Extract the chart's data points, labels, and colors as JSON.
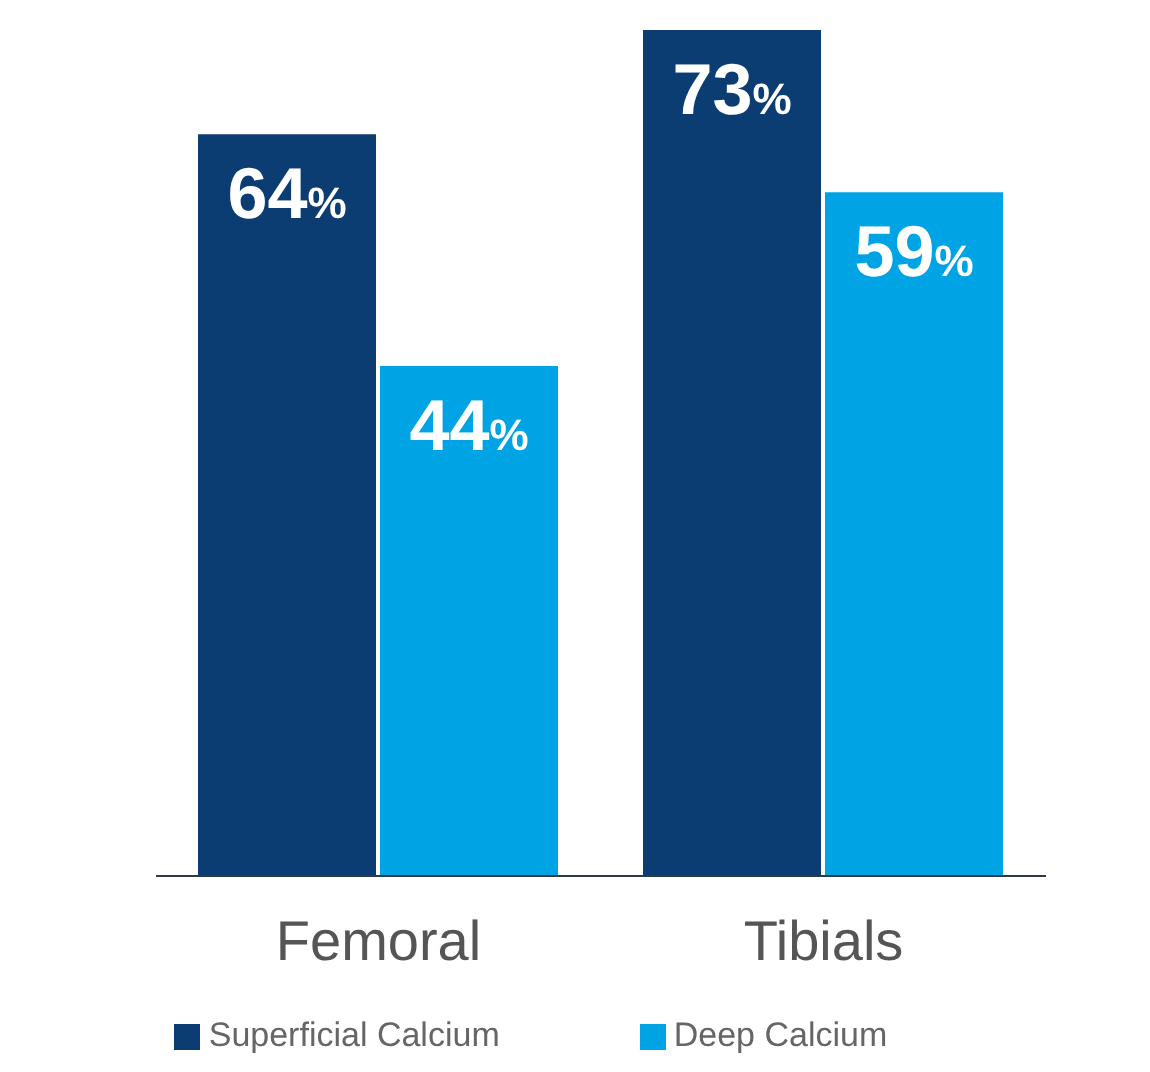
{
  "chart_data": {
    "type": "bar",
    "categories": [
      "Femoral",
      "Tibials"
    ],
    "series": [
      {
        "name": "Superficial Calcium",
        "color": "#0b3d73",
        "values": [
          64,
          73
        ],
        "value_labels": [
          "64%",
          "73%"
        ]
      },
      {
        "name": "Deep Calcium",
        "color": "#00a4e4",
        "values": [
          44,
          59
        ],
        "value_labels": [
          "44%",
          "59%"
        ]
      }
    ],
    "legend": "bottom",
    "grid": false
  }
}
